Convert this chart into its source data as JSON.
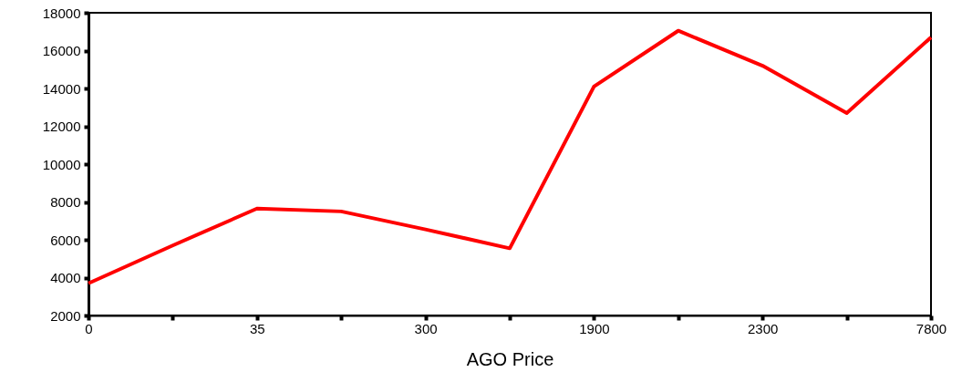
{
  "chart_data": {
    "type": "line",
    "xlabel": "AGO Price",
    "categories": [
      "0",
      null,
      "35",
      null,
      "300",
      null,
      "1900",
      null,
      "2300",
      null,
      "7800"
    ],
    "series": [
      {
        "color": "#ff0000",
        "values": [
          3700,
          5700,
          7650,
          7500,
          6550,
          5550,
          14100,
          17050,
          15200,
          12700,
          16700
        ]
      }
    ],
    "ylim": [
      2000,
      18000
    ],
    "yticks": [
      2000,
      4000,
      6000,
      8000,
      10000,
      12000,
      14000,
      16000,
      18000
    ],
    "grid": false,
    "marker": "none",
    "line_style": "solid"
  }
}
